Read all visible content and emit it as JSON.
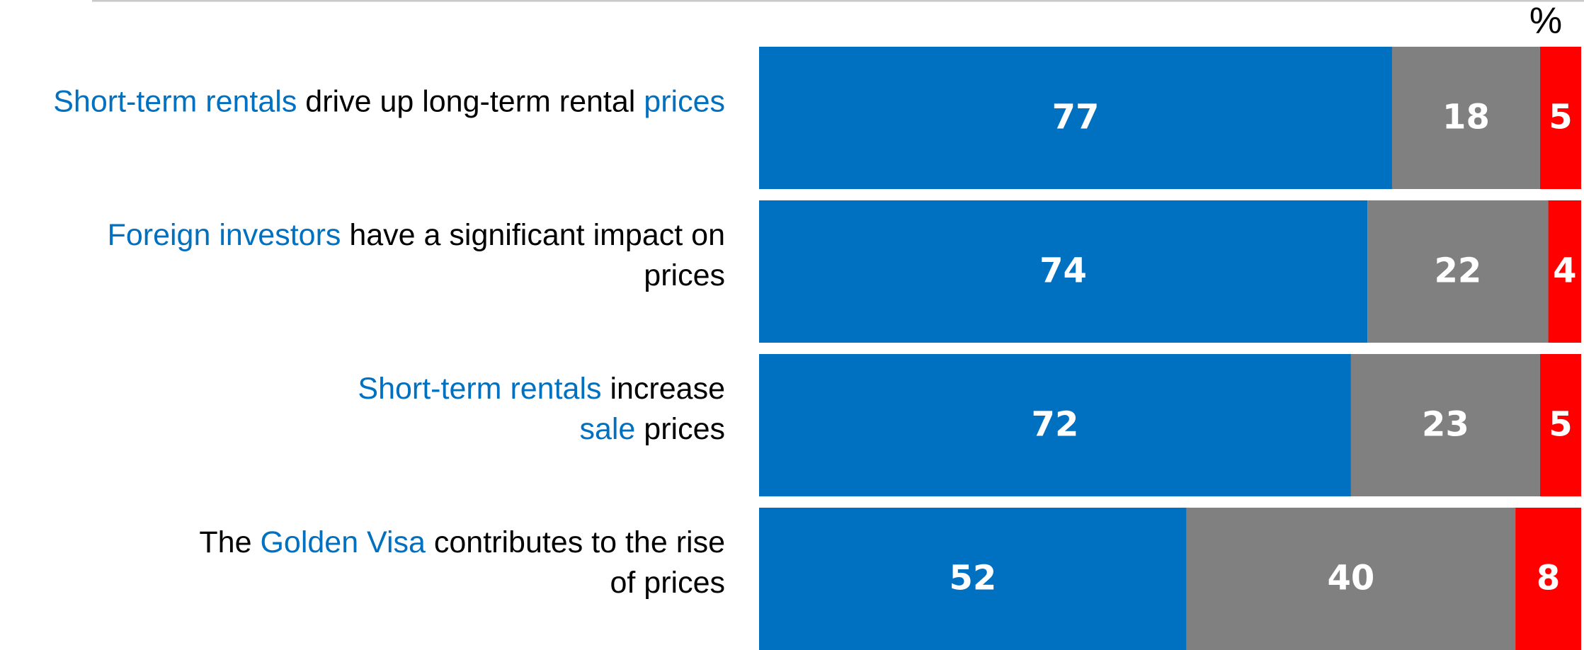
{
  "chart_data": {
    "type": "stacked-barh",
    "unit": "%",
    "categories": [
      [
        [
          {
            "text": "Short-term rentals",
            "color": "#0070c0"
          },
          {
            "text": " drive up long-term rental ",
            "color": "#000000"
          },
          {
            "text": "prices",
            "color": "#0070c0"
          }
        ]
      ],
      [
        [
          {
            "text": "Foreign investors",
            "color": "#0070c0"
          },
          {
            "text": " have a significant impact on",
            "color": "#000000"
          }
        ],
        [
          {
            "text": "prices",
            "color": "#000000"
          }
        ]
      ],
      [
        [
          {
            "text": "Short-term rentals",
            "color": "#0070c0"
          },
          {
            "text": " increase",
            "color": "#000000"
          }
        ],
        [
          {
            "text": "sale",
            "color": "#0070c0"
          },
          {
            "text": " prices",
            "color": "#000000"
          }
        ]
      ],
      [
        [
          {
            "text": "The ",
            "color": "#000000"
          },
          {
            "text": "Golden Visa",
            "color": "#0070c0"
          },
          {
            "text": " contributes to the rise",
            "color": "#000000"
          }
        ],
        [
          {
            "text": "of prices",
            "color": "#000000"
          }
        ]
      ]
    ],
    "series": [
      {
        "color": "#0070c0",
        "values": [
          77,
          74,
          72,
          52
        ]
      },
      {
        "color": "#808080",
        "values": [
          18,
          22,
          23,
          40
        ]
      },
      {
        "color": "#ff0000",
        "values": [
          5,
          4,
          5,
          8
        ]
      }
    ],
    "xlim": [
      0,
      100
    ]
  }
}
